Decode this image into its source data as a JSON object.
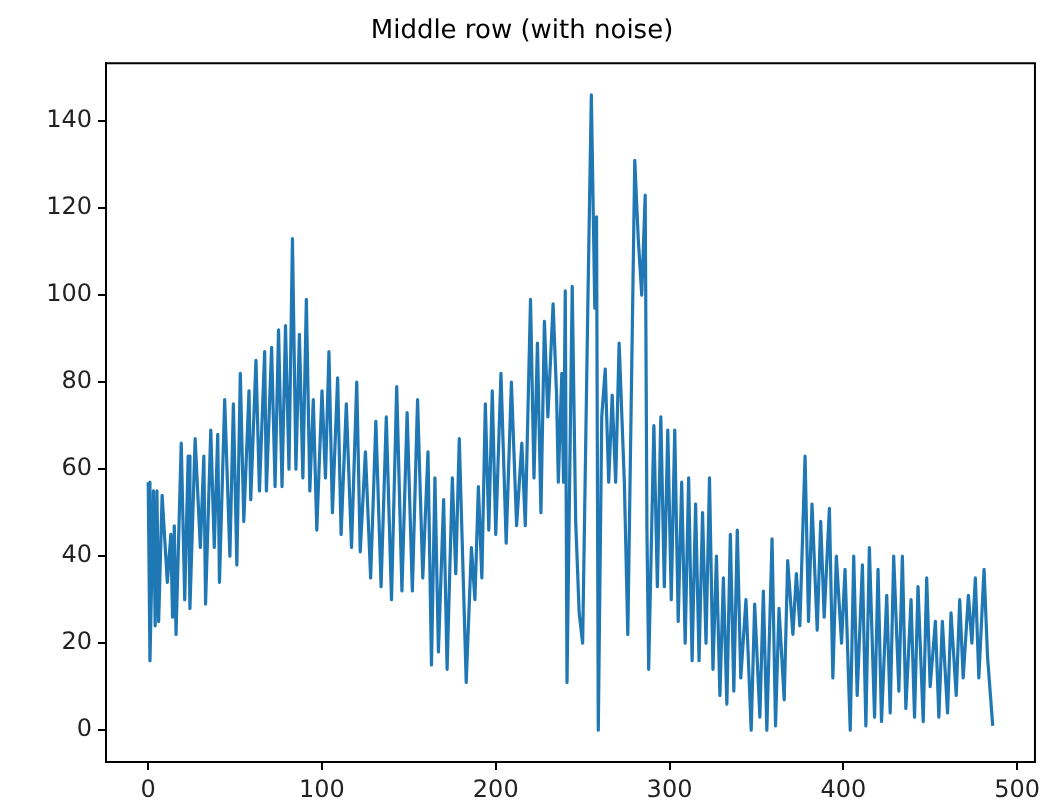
{
  "chart_data": {
    "type": "line",
    "title": "Middle row (with noise)",
    "color": "#1f77b4",
    "grid": false,
    "legend": false,
    "marker": "none",
    "line_style": "solid",
    "xlim": [
      -24.3,
      510.3
    ],
    "xticks": [
      0,
      100,
      200,
      300,
      400,
      500
    ],
    "ylim": [
      -7.3,
      153.3
    ],
    "yticks": [
      0,
      20,
      40,
      60,
      80,
      100,
      120,
      140
    ],
    "x": [
      0,
      1,
      3,
      4,
      5,
      6,
      8,
      11,
      13,
      14,
      15,
      16,
      19,
      21,
      23,
      24,
      27,
      30,
      32,
      33,
      36,
      38,
      40,
      41,
      44,
      47,
      49,
      51,
      53,
      55,
      58,
      59,
      62,
      64,
      67,
      68,
      71,
      73,
      75,
      77,
      79,
      81,
      83,
      85,
      87,
      89,
      91,
      93,
      95,
      97,
      100,
      102,
      104,
      106,
      109,
      111,
      114,
      117,
      120,
      122,
      125,
      128,
      131,
      134,
      137,
      140,
      143,
      146,
      149,
      152,
      155,
      158,
      161,
      163,
      165,
      167,
      170,
      172,
      175,
      177,
      179,
      183,
      186,
      188,
      190,
      192,
      194,
      196,
      198,
      200,
      203,
      206,
      209,
      212,
      215,
      217,
      220,
      222,
      224,
      226,
      228,
      230,
      233,
      235,
      236,
      238,
      239,
      240,
      241,
      244,
      246,
      248,
      250,
      253,
      255,
      257,
      258,
      259,
      261,
      263,
      265,
      267,
      269,
      271,
      274,
      276,
      280,
      282,
      284,
      286,
      287,
      288,
      291,
      293,
      295,
      297,
      299,
      301,
      303,
      305,
      307,
      309,
      311,
      313,
      315,
      317,
      319,
      321,
      323,
      325,
      327,
      329,
      331,
      333,
      335,
      337,
      339,
      341,
      344,
      347,
      349,
      352,
      354,
      356,
      359,
      361,
      363,
      366,
      368,
      371,
      373,
      375,
      378,
      380,
      382,
      385,
      387,
      389,
      392,
      394,
      396,
      399,
      401,
      404,
      406,
      408,
      411,
      413,
      415,
      418,
      420,
      422,
      425,
      427,
      429,
      432,
      434,
      436,
      439,
      441,
      443,
      446,
      448,
      450,
      453,
      455,
      457,
      460,
      462,
      465,
      467,
      469,
      472,
      474,
      476,
      478,
      481,
      483,
      486
    ],
    "values": [
      57,
      16,
      55,
      24,
      55,
      25,
      54,
      34,
      45,
      26,
      47,
      22,
      66,
      30,
      63,
      28,
      67,
      42,
      63,
      29,
      69,
      42,
      68,
      34,
      76,
      40,
      75,
      38,
      82,
      48,
      78,
      53,
      85,
      55,
      87,
      55,
      88,
      56,
      92,
      56,
      93,
      60,
      113,
      60,
      91,
      58,
      99,
      55,
      76,
      46,
      78,
      58,
      87,
      50,
      81,
      45,
      75,
      42,
      80,
      41,
      64,
      35,
      71,
      33,
      72,
      30,
      79,
      32,
      73,
      32,
      76,
      35,
      64,
      15,
      58,
      18,
      53,
      14,
      58,
      36,
      67,
      11,
      42,
      30,
      56,
      35,
      75,
      46,
      78,
      45,
      82,
      43,
      80,
      47,
      66,
      47,
      99,
      58,
      89,
      50,
      94,
      72,
      98,
      77,
      57,
      82,
      57,
      101,
      11,
      102,
      48,
      27,
      20,
      98,
      146,
      97,
      118,
      0,
      72,
      83,
      57,
      77,
      57,
      89,
      57,
      22,
      131,
      113,
      100,
      123,
      46,
      14,
      70,
      33,
      72,
      33,
      69,
      30,
      69,
      25,
      57,
      20,
      58,
      16,
      52,
      16,
      50,
      20,
      58,
      14,
      40,
      8,
      35,
      6,
      45,
      9,
      46,
      12,
      30,
      0,
      29,
      3,
      32,
      0,
      44,
      1,
      28,
      7,
      39,
      22,
      36,
      24,
      63,
      25,
      52,
      23,
      48,
      26,
      51,
      12,
      40,
      20,
      37,
      0,
      40,
      8,
      38,
      1,
      42,
      3,
      37,
      2,
      31,
      4,
      40,
      9,
      40,
      5,
      30,
      3,
      33,
      2,
      35,
      10,
      25,
      3,
      25,
      4,
      27,
      8,
      30,
      12,
      31,
      20,
      35,
      12,
      37,
      17,
      1
    ]
  }
}
